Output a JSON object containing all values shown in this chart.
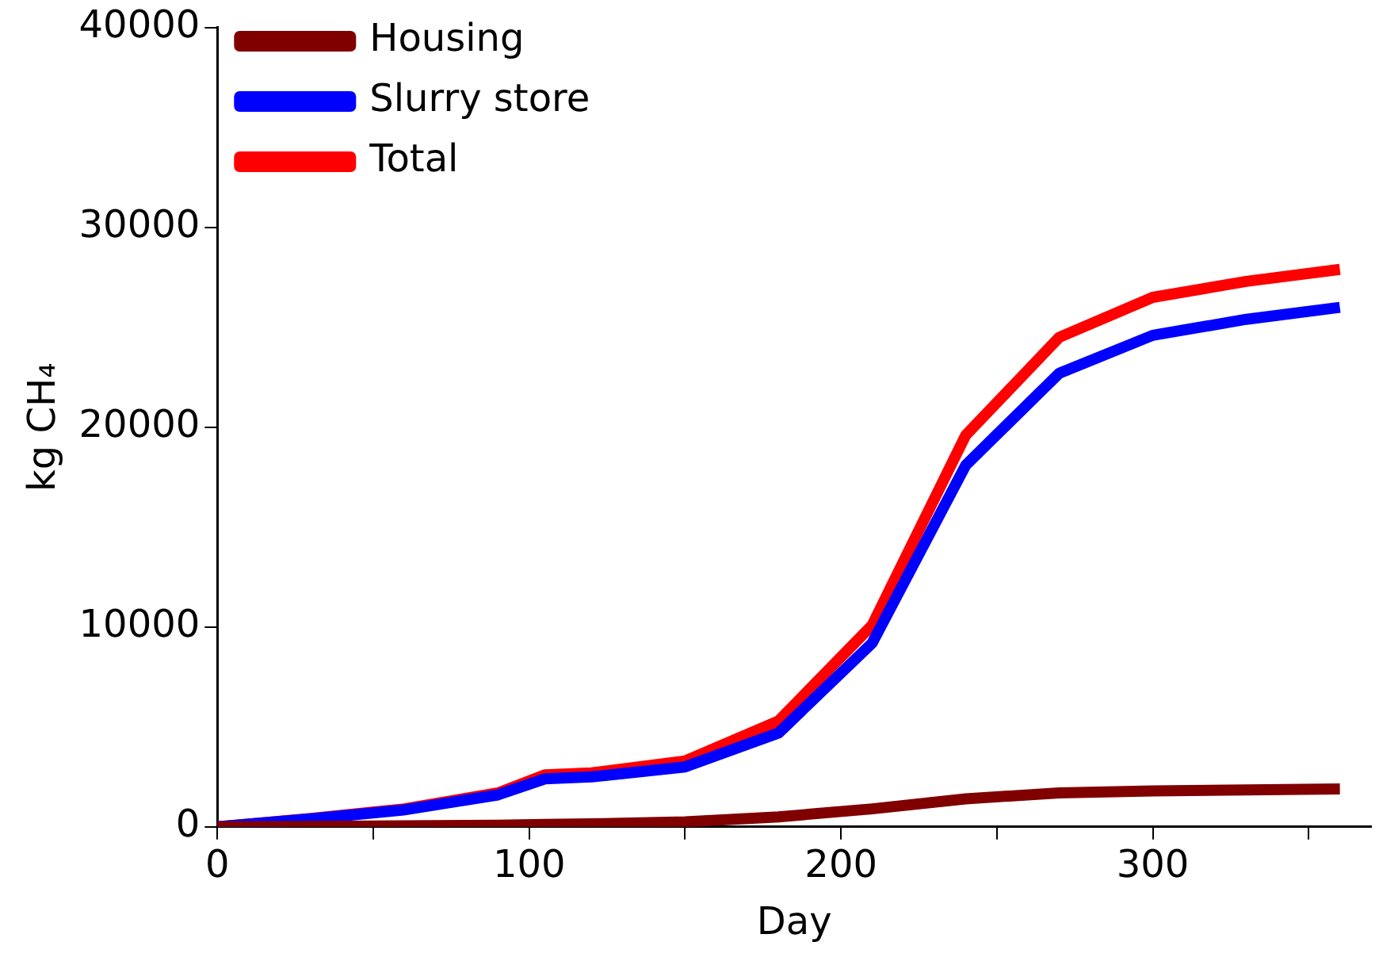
{
  "chart_data": {
    "type": "line",
    "xlabel": "Day",
    "ylabel": "kg CH₄",
    "xlim": [
      0,
      370
    ],
    "xticks": [
      0,
      {
        "value": 50,
        "label": null
      },
      100,
      {
        "value": 150,
        "label": null
      },
      200,
      {
        "value": 250,
        "label": null
      },
      300,
      {
        "value": 350,
        "label": null
      }
    ],
    "ylim": [
      0,
      40000
    ],
    "yticks": [
      0,
      10000,
      20000,
      30000,
      40000
    ],
    "x": [
      0,
      30,
      60,
      90,
      105,
      120,
      150,
      180,
      210,
      240,
      270,
      300,
      330,
      360
    ],
    "series": [
      {
        "name": "Housing",
        "color": "#800000",
        "values": [
          0,
          20,
          50,
          80,
          120,
          150,
          250,
          500,
          900,
          1400,
          1700,
          1800,
          1850,
          1900
        ]
      },
      {
        "name": "Slurry store",
        "color": "#0000ff",
        "values": [
          0,
          400,
          850,
          1600,
          2400,
          2500,
          3000,
          4700,
          9200,
          18100,
          22700,
          24600,
          25400,
          26000
        ]
      },
      {
        "name": "Total",
        "color": "#ff0000",
        "values": [
          0,
          420,
          900,
          1700,
          2600,
          2700,
          3300,
          5300,
          10100,
          19600,
          24500,
          26500,
          27300,
          27900
        ]
      }
    ],
    "grid": false,
    "legend": "top left",
    "marker": "none",
    "line_style": "solid"
  }
}
